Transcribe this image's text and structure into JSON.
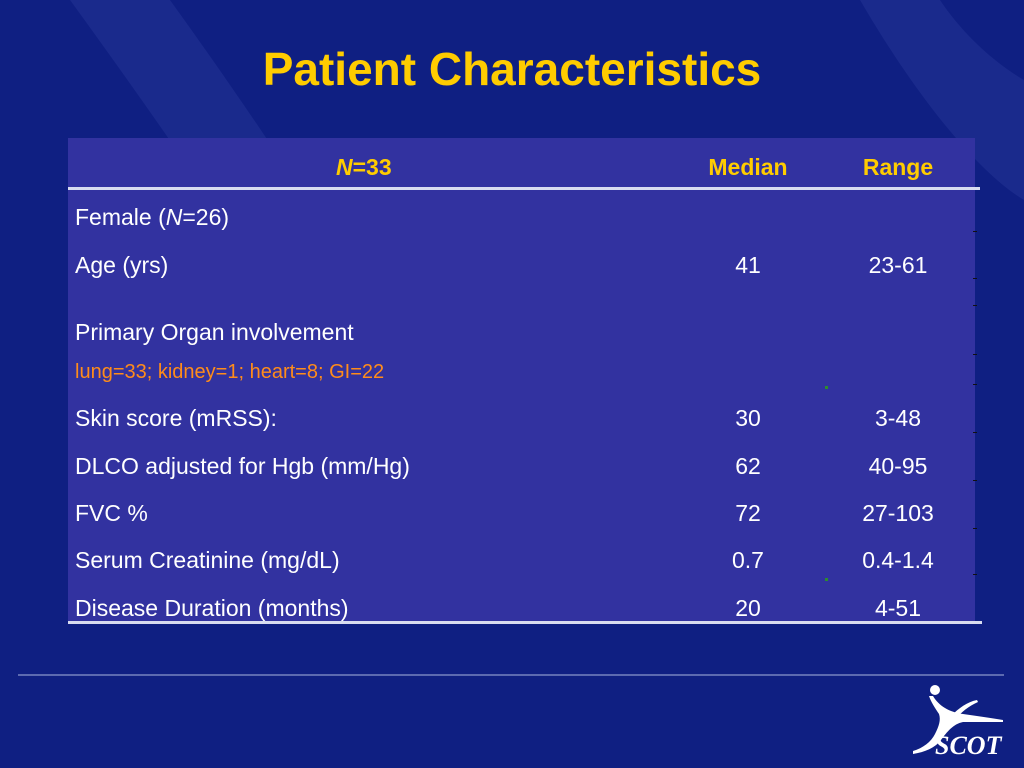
{
  "title": "Patient Characteristics",
  "table": {
    "header": {
      "n_symbol": "N",
      "n_value": "=33",
      "median": "Median",
      "range": "Range"
    },
    "rows": [
      {
        "label_prefix": "Female  (",
        "label_italic": "N",
        "label_suffix": "=26)",
        "median": "",
        "range": ""
      },
      {
        "label": "Age (yrs)",
        "median": "41",
        "range": "23-61"
      },
      {
        "label": "Primary Organ involvement",
        "sublabel": "lung=33; kidney=1; heart=8; GI=22",
        "median": "",
        "range": ""
      },
      {
        "label": "Skin score (mRSS):",
        "median": "30",
        "range": "3-48"
      },
      {
        "label": "DLCO adjusted for Hgb (mm/Hg)",
        "median": "62",
        "range": "40-95"
      },
      {
        "label": "FVC %",
        "median": "72",
        "range": "27-103"
      },
      {
        "label": "Serum Creatinine (mg/dL)",
        "median": "0.7",
        "range": "0.4-1.4"
      },
      {
        "label": "Disease Duration (months)",
        "median": "20",
        "range": "4-51"
      }
    ]
  },
  "logo": {
    "text": "SCOT",
    "icon": "running-figure-icon"
  },
  "colors": {
    "background": "#0f1f82",
    "table": "#3232a0",
    "title": "#ffcc00",
    "sublabel": "#ff8c1a"
  }
}
